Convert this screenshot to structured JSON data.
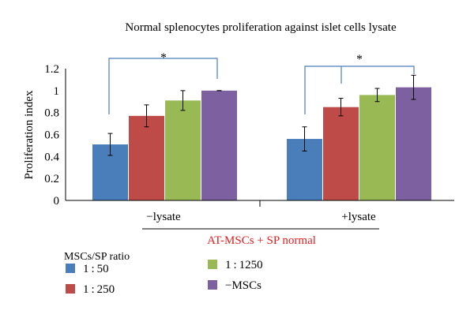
{
  "chart_data": {
    "type": "bar",
    "title": "Normal splenocytes proliferation against islet cells lysate",
    "ylabel": "Proliferation index",
    "xlabel": "",
    "ylim": [
      0,
      1.2
    ],
    "yticks": [
      "0",
      "0.2",
      "0.4",
      "0.6",
      "0.8",
      "1",
      "1.2"
    ],
    "categories": [
      "−lysate",
      "+lysate"
    ],
    "group_caption": "AT-MSCs + SP normal",
    "legend_title": "MSCs/SP ratio",
    "legend_placement": "bottom-left",
    "grid": false,
    "series": [
      {
        "name": "1 : 50",
        "color": "#4a7ebb",
        "values": [
          0.51,
          0.56
        ],
        "errors": [
          0.1,
          0.11
        ]
      },
      {
        "name": "1 : 250",
        "color": "#be4b48",
        "values": [
          0.77,
          0.85
        ],
        "errors": [
          0.1,
          0.08
        ]
      },
      {
        "name": "1 : 1250",
        "color": "#98b954",
        "values": [
          0.91,
          0.96
        ],
        "errors": [
          0.09,
          0.06
        ]
      },
      {
        "name": "−MSCs",
        "color": "#7d60a0",
        "values": [
          1.0,
          1.03
        ],
        "errors": [
          0.0,
          0.11
        ]
      }
    ],
    "significance_marker": "*",
    "axis_color": "#000000",
    "bracket_color": "#4a7ebb",
    "caption_color": "#e02020"
  }
}
